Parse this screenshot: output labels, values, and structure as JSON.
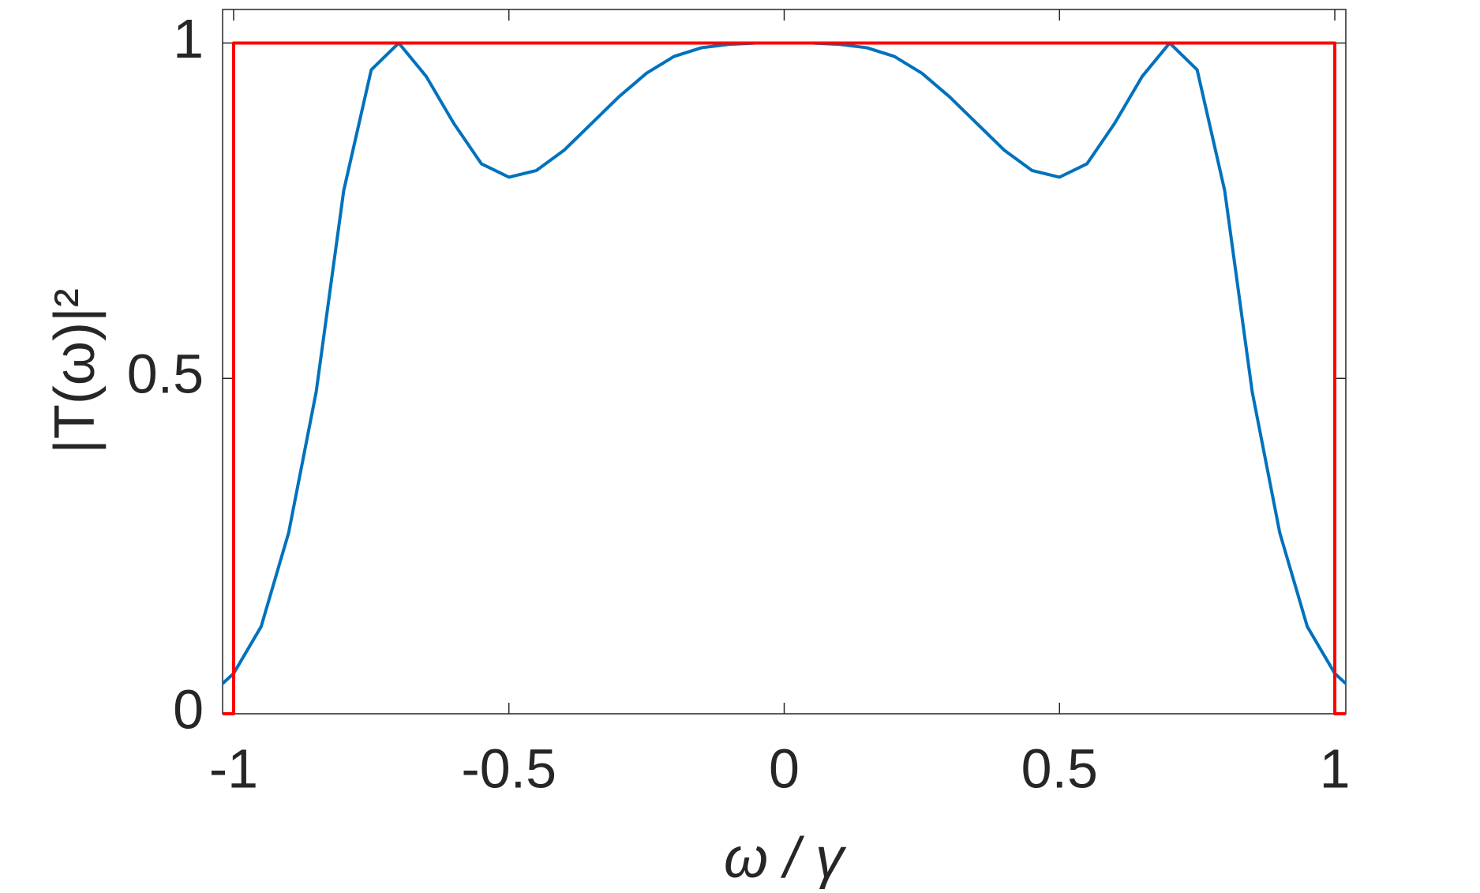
{
  "chart_data": {
    "type": "line",
    "xlabel": "ω / γ",
    "ylabel": "|T(ω)|²",
    "xlim": [
      -1.02,
      1.02
    ],
    "ylim": [
      0,
      1.05
    ],
    "xticks": [
      -1,
      -0.5,
      0,
      0.5,
      1
    ],
    "yticks": [
      0,
      0.5,
      1
    ],
    "grid": false,
    "series": [
      {
        "color": "#0072bd",
        "x": [
          -1.02,
          -1,
          -0.95,
          -0.9,
          -0.85,
          -0.8,
          -0.75,
          -0.7,
          -0.65,
          -0.6,
          -0.55,
          -0.5,
          -0.45,
          -0.4,
          -0.35,
          -0.3,
          -0.25,
          -0.2,
          -0.15,
          -0.1,
          -0.05,
          0,
          0.05,
          0.1,
          0.15,
          0.2,
          0.25,
          0.3,
          0.35,
          0.4,
          0.45,
          0.5,
          0.55,
          0.6,
          0.65,
          0.7,
          0.75,
          0.8,
          0.85,
          0.9,
          0.95,
          1,
          1.02
        ],
        "values": [
          0.045,
          0.06,
          0.13,
          0.27,
          0.48,
          0.78,
          0.96,
          1.0,
          0.95,
          0.88,
          0.82,
          0.8,
          0.81,
          0.84,
          0.88,
          0.92,
          0.955,
          0.98,
          0.993,
          0.998,
          1.0,
          1.0,
          1.0,
          0.998,
          0.993,
          0.98,
          0.955,
          0.92,
          0.88,
          0.84,
          0.81,
          0.8,
          0.82,
          0.88,
          0.95,
          1.0,
          0.96,
          0.78,
          0.48,
          0.27,
          0.13,
          0.06,
          0.045
        ]
      },
      {
        "color": "#ff0000",
        "x": [
          -1.02,
          -1,
          -1,
          1,
          1,
          1.02
        ],
        "values": [
          0,
          0,
          1,
          1,
          0,
          0
        ]
      }
    ]
  }
}
